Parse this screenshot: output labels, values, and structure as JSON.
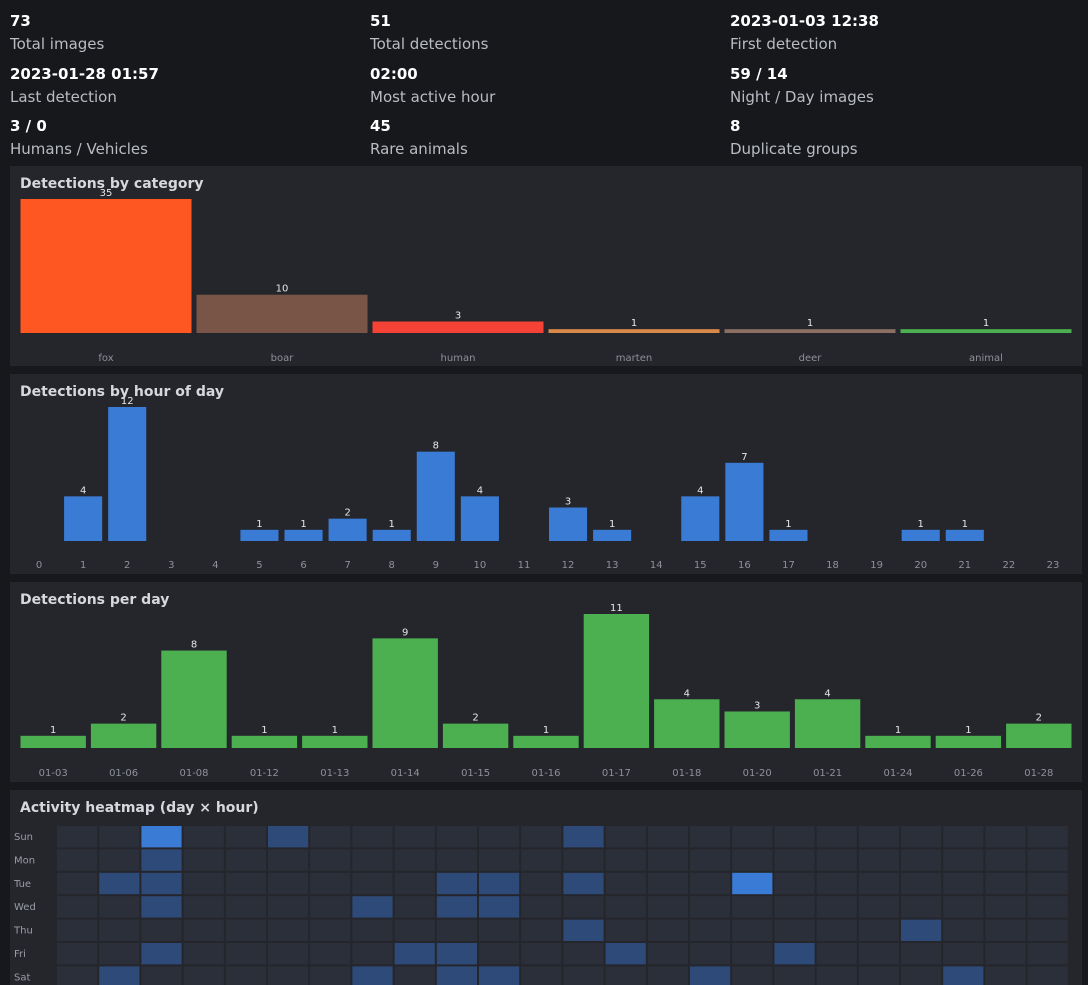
{
  "stats": [
    {
      "value": "73",
      "label": "Total images"
    },
    {
      "value": "51",
      "label": "Total detections"
    },
    {
      "value": "2023-01-03 12:38",
      "label": "First detection"
    },
    {
      "value": "2023-01-28 01:57",
      "label": "Last detection"
    },
    {
      "value": "02:00",
      "label": "Most active hour"
    },
    {
      "value": "59 / 14",
      "label": "Night / Day images"
    },
    {
      "value": "3 / 0",
      "label": "Humans / Vehicles"
    },
    {
      "value": "45",
      "label": "Rare animals"
    },
    {
      "value": "8",
      "label": "Duplicate groups"
    }
  ],
  "colors": {
    "background": "#17181c",
    "panel": "#25262b",
    "hour_bar": "#3a7bd5",
    "day_bar": "#4caf50",
    "heat_empty": "#2a2f3a",
    "heat_low": "#2e4a78",
    "heat_high": "#3a7bd5"
  },
  "chart_data": [
    {
      "type": "bar",
      "title": "Detections by category",
      "categories": [
        "fox",
        "boar",
        "human",
        "marten",
        "deer",
        "animal"
      ],
      "values": [
        35,
        10,
        3,
        1,
        1,
        1
      ],
      "value_labels": [
        "35",
        "10",
        "3",
        "1",
        "1",
        "1"
      ],
      "colors": [
        "#ff5722",
        "#795548",
        "#f44336",
        "#d98a4a",
        "#8d6e63",
        "#4caf50"
      ]
    },
    {
      "type": "bar",
      "title": "Detections by hour of day",
      "categories": [
        "0",
        "1",
        "2",
        "3",
        "4",
        "5",
        "6",
        "7",
        "8",
        "9",
        "10",
        "11",
        "12",
        "13",
        "14",
        "15",
        "16",
        "17",
        "18",
        "19",
        "20",
        "21",
        "22",
        "23"
      ],
      "values": [
        0,
        4,
        12,
        0,
        0,
        1,
        1,
        2,
        1,
        8,
        4,
        0,
        3,
        1,
        0,
        4,
        7,
        1,
        0,
        0,
        1,
        1,
        0,
        0
      ],
      "color": "#3a7bd5"
    },
    {
      "type": "bar",
      "title": "Detections per day",
      "categories": [
        "01-03",
        "01-06",
        "01-08",
        "01-12",
        "01-13",
        "01-14",
        "01-15",
        "01-16",
        "01-17",
        "01-18",
        "01-20",
        "01-21",
        "01-24",
        "01-26",
        "01-28"
      ],
      "values": [
        1,
        2,
        8,
        1,
        1,
        9,
        2,
        1,
        11,
        4,
        3,
        4,
        1,
        1,
        2
      ],
      "color": "#4caf50"
    },
    {
      "type": "heatmap",
      "title": "Activity heatmap (day × hour)",
      "rows": [
        "Sun",
        "Mon",
        "Tue",
        "Wed",
        "Thu",
        "Fri",
        "Sat"
      ],
      "columns": 24,
      "values": [
        [
          0,
          0,
          2,
          0,
          0,
          1,
          0,
          0,
          0,
          0,
          0,
          0,
          1,
          0,
          0,
          0,
          0,
          0,
          0,
          0,
          0,
          0,
          0,
          0
        ],
        [
          0,
          0,
          1,
          0,
          0,
          0,
          0,
          0,
          0,
          0,
          0,
          0,
          0,
          0,
          0,
          0,
          0,
          0,
          0,
          0,
          0,
          0,
          0,
          0
        ],
        [
          0,
          1,
          1,
          0,
          0,
          0,
          0,
          0,
          0,
          1,
          1,
          0,
          1,
          0,
          0,
          0,
          2,
          0,
          0,
          0,
          0,
          0,
          0,
          0
        ],
        [
          0,
          0,
          1,
          0,
          0,
          0,
          0,
          1,
          0,
          1,
          1,
          0,
          0,
          0,
          0,
          0,
          0,
          0,
          0,
          0,
          0,
          0,
          0,
          0
        ],
        [
          0,
          0,
          0,
          0,
          0,
          0,
          0,
          0,
          0,
          0,
          0,
          0,
          1,
          0,
          0,
          0,
          0,
          0,
          0,
          0,
          1,
          0,
          0,
          0
        ],
        [
          0,
          0,
          1,
          0,
          0,
          0,
          0,
          0,
          1,
          1,
          0,
          0,
          0,
          1,
          0,
          0,
          0,
          1,
          0,
          0,
          0,
          0,
          0,
          0
        ],
        [
          0,
          1,
          0,
          0,
          0,
          0,
          0,
          1,
          0,
          1,
          1,
          0,
          0,
          0,
          0,
          1,
          0,
          0,
          0,
          0,
          0,
          1,
          0,
          0
        ]
      ]
    }
  ]
}
